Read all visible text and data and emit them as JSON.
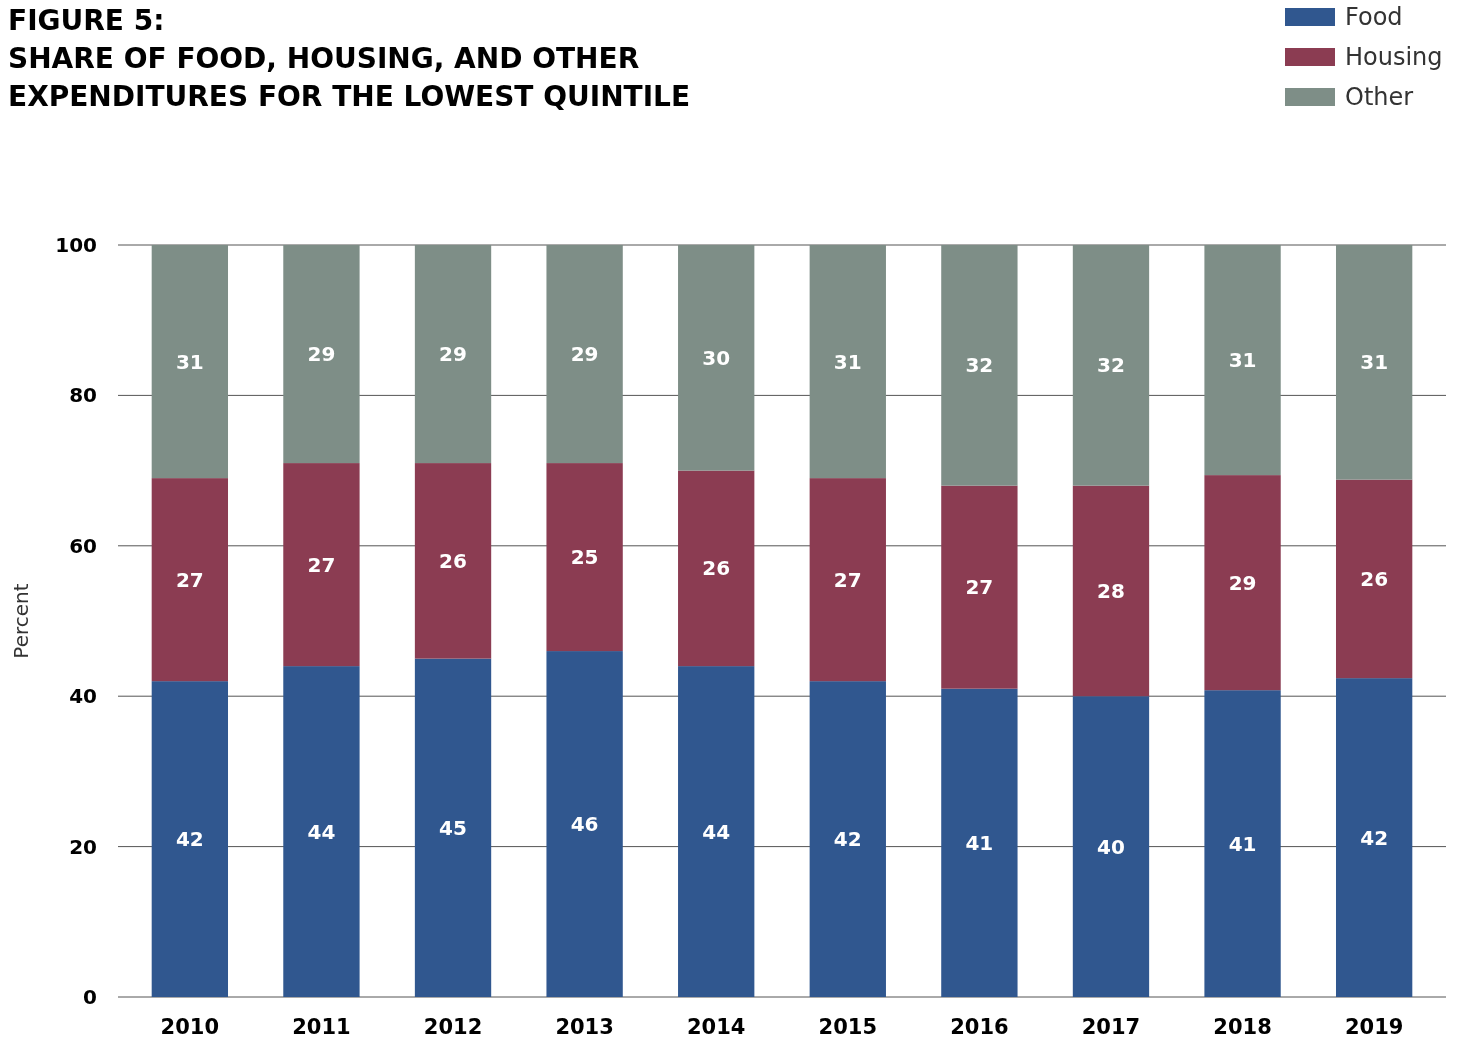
{
  "chart_data": {
    "type": "bar",
    "title": "FIGURE 5:\nSHARE OF FOOD, HOUSING, AND OTHER\nEXPENDITURES FOR THE LOWEST QUINTILE",
    "ylabel": "Percent",
    "stacked": true,
    "categories": [
      "2010",
      "2011",
      "2012",
      "2013",
      "2014",
      "2015",
      "2016",
      "2017",
      "2018",
      "2019"
    ],
    "series": [
      {
        "name": "Food",
        "color": "#30578f",
        "values": [
          42,
          44,
          45,
          46,
          44,
          42,
          41,
          40,
          40.8,
          42.4
        ],
        "value_labels": [
          "42",
          "44",
          "45",
          "46",
          "44",
          "42",
          "41",
          "40",
          "41",
          "42"
        ]
      },
      {
        "name": "Housing",
        "color": "#8b3c52",
        "values": [
          27,
          27,
          26,
          25,
          26,
          27,
          27,
          28,
          28.6,
          26.4
        ],
        "value_labels": [
          "27",
          "27",
          "26",
          "25",
          "26",
          "27",
          "27",
          "28",
          "29",
          "26"
        ]
      },
      {
        "name": "Other",
        "color": "#7e8e87",
        "values": [
          31,
          29,
          29,
          29,
          30,
          31,
          32,
          32,
          30.6,
          31.2
        ],
        "value_labels": [
          "31",
          "29",
          "29",
          "29",
          "30",
          "31",
          "32",
          "32",
          "31",
          "31"
        ]
      }
    ],
    "ylim": [
      0,
      100
    ],
    "yticks": [
      0,
      20,
      40,
      60,
      80,
      100
    ],
    "grid": "y",
    "legend": "top right"
  }
}
